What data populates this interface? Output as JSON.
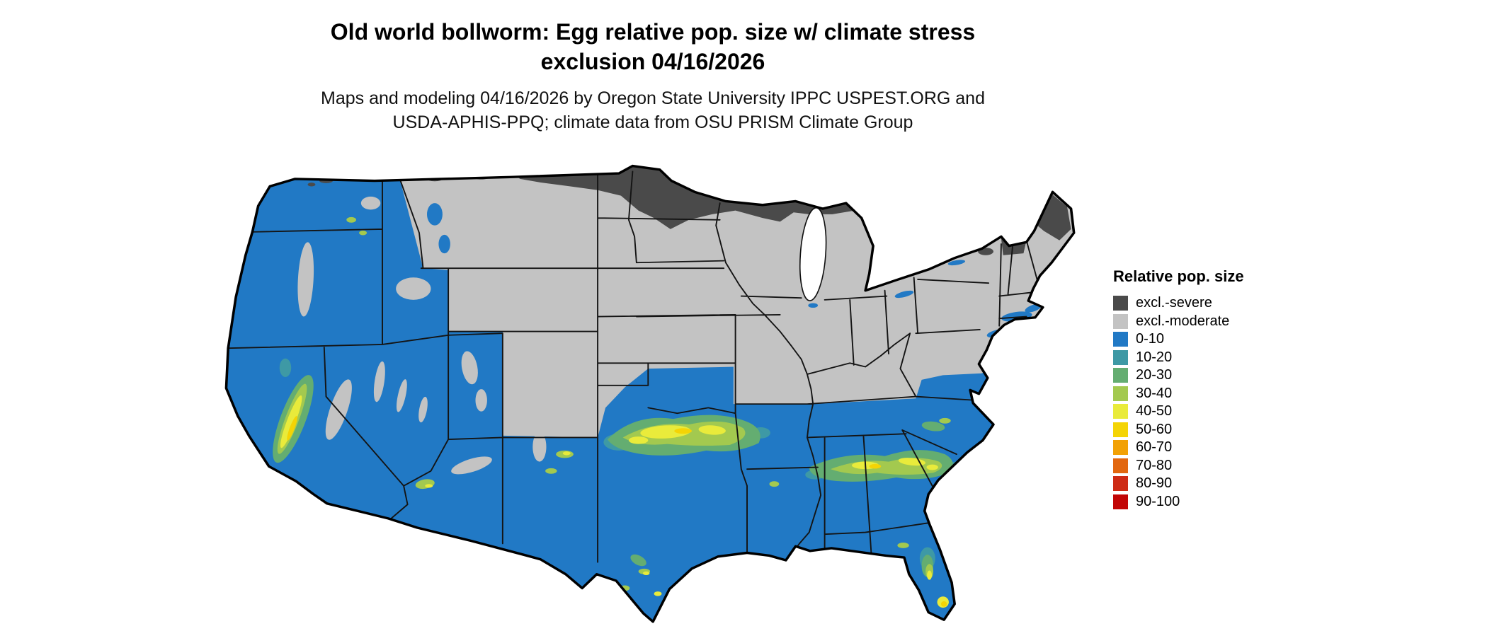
{
  "page": {
    "background": "#ffffff"
  },
  "header": {
    "title_line1": "Old world bollworm: Egg relative pop. size w/ climate stress",
    "title_line2": "exclusion 04/16/2026",
    "subtitle_line1": "Maps and modeling 04/16/2026 by Oregon State University IPPC USPEST.ORG and",
    "subtitle_line2": "USDA-APHIS-PPQ; climate data from OSU PRISM Climate Group"
  },
  "map": {
    "name": "Conterminous United States map of egg relative population size with climate stress exclusion",
    "outline_color": "#000000",
    "water_color": "#ffffff",
    "state_border_color": "#141414"
  },
  "legend": {
    "title": "Relative pop. size",
    "items": [
      {
        "label": "excl.-severe",
        "color": "#4a4a4a"
      },
      {
        "label": "excl.-moderate",
        "color": "#c3c3c3"
      },
      {
        "label": "0-10",
        "color": "#2179c5"
      },
      {
        "label": "10-20",
        "color": "#3e99a5"
      },
      {
        "label": "20-30",
        "color": "#64ad71"
      },
      {
        "label": "30-40",
        "color": "#a3c94f"
      },
      {
        "label": "40-50",
        "color": "#e9eb3b"
      },
      {
        "label": "50-60",
        "color": "#f4d405"
      },
      {
        "label": "60-70",
        "color": "#f2a105"
      },
      {
        "label": "70-80",
        "color": "#e2670f"
      },
      {
        "label": "80-90",
        "color": "#ce2b15"
      },
      {
        "label": "90-100",
        "color": "#c20606"
      }
    ]
  }
}
